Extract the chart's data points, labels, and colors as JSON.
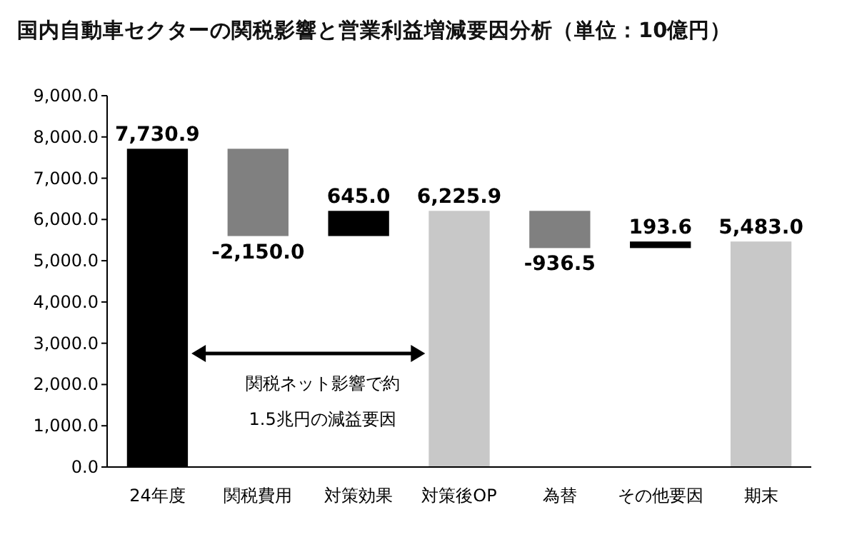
{
  "chart_data": {
    "type": "bar",
    "title": "国内自動車セクターの関税影響と営業利益増減要因分析（単位：10億円）",
    "categories": [
      "24年度",
      "関税費用",
      "対策効果",
      "対策後OP",
      "為替",
      "その他要因",
      "期末"
    ],
    "values": [
      7730.9,
      -2150.0,
      645.0,
      6225.9,
      -936.5,
      193.6,
      5483.0
    ],
    "base": [
      0,
      7730.9,
      5580.9,
      0,
      6225.9,
      5289.4,
      0
    ],
    "colors": [
      "#000000",
      "#808080",
      "#000000",
      "#c8c8c8",
      "#808080",
      "#000000",
      "#c8c8c8"
    ],
    "value_labels": [
      "7,730.9",
      "-2,150.0",
      "645.0",
      "6,225.9",
      "-936.5",
      "193.6",
      "5,483.0"
    ],
    "ylim": [
      0,
      9000
    ],
    "yticks": [
      {
        "value": 0,
        "label": "0.0"
      },
      {
        "value": 1000,
        "label": "1,000.0"
      },
      {
        "value": 2000,
        "label": "2,000.0"
      },
      {
        "value": 3000,
        "label": "3,000.0"
      },
      {
        "value": 4000,
        "label": "4,000.0"
      },
      {
        "value": 5000,
        "label": "5,000.0"
      },
      {
        "value": 6000,
        "label": "6,000.0"
      },
      {
        "value": 7000,
        "label": "7,000.0"
      },
      {
        "value": 8000,
        "label": "8,000.0"
      },
      {
        "value": 9000,
        "label": "9,000.0"
      }
    ],
    "grid": false,
    "annotations": [
      "関税ネット影響で約",
      "1.5兆円の減益要因"
    ]
  }
}
